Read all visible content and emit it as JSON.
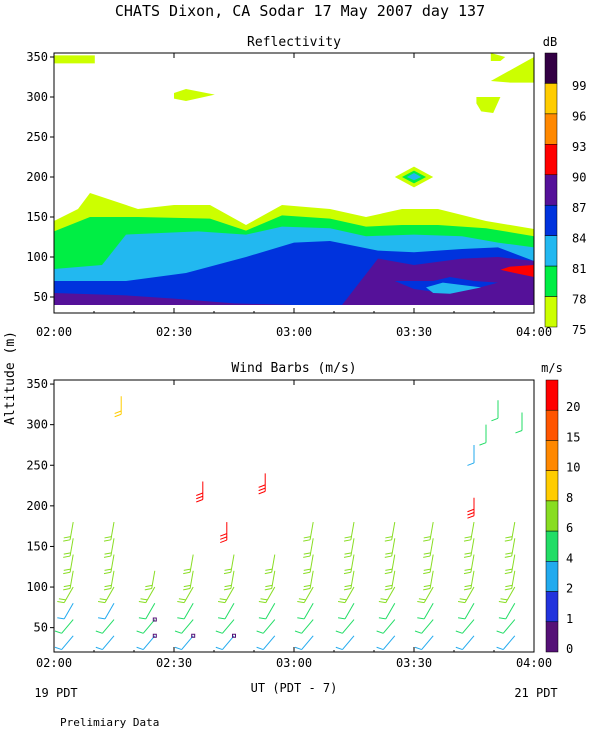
{
  "header": {
    "title": "CHATS Dixon, CA  Sodar  17 May 2007  day 137"
  },
  "footer": {
    "start_label": "19 PDT",
    "end_label": "21 PDT",
    "note": "Prelimiary Data"
  },
  "chart_data": [
    {
      "type": "heatmap",
      "title": "Reflectivity",
      "ylabel": "Altitude (m)",
      "xlabel": "UT (PDT - 7)",
      "x_ticks": [
        "02:00",
        "02:30",
        "03:00",
        "03:30",
        "04:00"
      ],
      "x_tick_hours": [
        2.0,
        2.5,
        3.0,
        3.5,
        4.0
      ],
      "y_ticks": [
        50,
        100,
        150,
        200,
        250,
        300,
        350
      ],
      "ylim": [
        30,
        355
      ],
      "xlim_hours": [
        2.0,
        4.0
      ],
      "colorbar_unit": "dB",
      "colorbar_levels": [
        75,
        78,
        81,
        84,
        87,
        90,
        93,
        96,
        99
      ],
      "colors": {
        "75": "#ccff00",
        "78": "#00ee44",
        "81": "#22b8f0",
        "84": "#0033dd",
        "87": "#551199",
        "90": "#ff0000",
        "93": "#ff8800",
        "96": "#ffcc00",
        "99": "#330044"
      },
      "layers": [
        {
          "level": 75,
          "top_profile": [
            [
              2.0,
              145
            ],
            [
              2.1,
              160
            ],
            [
              2.15,
              180
            ],
            [
              2.35,
              160
            ],
            [
              2.5,
              165
            ],
            [
              2.65,
              165
            ],
            [
              2.8,
              140
            ],
            [
              2.95,
              165
            ],
            [
              3.15,
              160
            ],
            [
              3.3,
              150
            ],
            [
              3.45,
              160
            ],
            [
              3.6,
              160
            ],
            [
              3.8,
              145
            ],
            [
              4.0,
              135
            ]
          ]
        },
        {
          "level": 78,
          "top_profile": [
            [
              2.0,
              132
            ],
            [
              2.15,
              150
            ],
            [
              2.35,
              150
            ],
            [
              2.65,
              148
            ],
            [
              2.8,
              133
            ],
            [
              2.95,
              152
            ],
            [
              3.15,
              148
            ],
            [
              3.3,
              138
            ],
            [
              3.45,
              140
            ],
            [
              3.6,
              140
            ],
            [
              3.8,
              136
            ],
            [
              4.0,
              126
            ]
          ]
        },
        {
          "level": 81,
          "top_profile": [
            [
              2.0,
              85
            ],
            [
              2.2,
              90
            ],
            [
              2.3,
              128
            ],
            [
              2.6,
              132
            ],
            [
              2.8,
              128
            ],
            [
              2.95,
              138
            ],
            [
              3.15,
              136
            ],
            [
              3.3,
              126
            ],
            [
              3.5,
              128
            ],
            [
              3.7,
              126
            ],
            [
              3.85,
              118
            ],
            [
              4.0,
              112
            ]
          ]
        },
        {
          "level": 84,
          "top_profile": [
            [
              2.0,
              70
            ],
            [
              2.3,
              70
            ],
            [
              2.55,
              80
            ],
            [
              2.8,
              100
            ],
            [
              3.0,
              118
            ],
            [
              3.15,
              120
            ],
            [
              3.35,
              108
            ],
            [
              3.5,
              106
            ],
            [
              3.7,
              110
            ],
            [
              3.85,
              112
            ],
            [
              4.0,
              95
            ]
          ]
        },
        {
          "level": 87,
          "top_profile": [
            [
              2.0,
              55
            ],
            [
              2.3,
              52
            ],
            [
              2.5,
              48
            ],
            [
              2.75,
              42
            ],
            [
              3.0,
              40
            ],
            [
              3.2,
              40
            ],
            [
              3.35,
              98
            ],
            [
              3.5,
              90
            ],
            [
              3.7,
              98
            ],
            [
              3.85,
              100
            ],
            [
              4.0,
              95
            ]
          ]
        }
      ],
      "patches": [
        {
          "level": 75,
          "where": "top-left near 350 m at 02:00-02:10"
        },
        {
          "level": 75,
          "where": "near 300 m at 02:35"
        },
        {
          "level": 75,
          "where": "near 350 m at 03:45"
        },
        {
          "level": 75,
          "where": "290-300 m at 03:40-03:45"
        },
        {
          "level": 75,
          "where": "320-350 m at 03:50-04:00"
        },
        {
          "level": 75,
          "where": "200 m at 03:30"
        },
        {
          "level": 78,
          "where": "200 m at 03:30"
        },
        {
          "level": 81,
          "where": "55-65 m at 03:40"
        },
        {
          "level": 90,
          "where": "75-90 m at 03:55-04:00"
        }
      ]
    },
    {
      "type": "scatter",
      "title": "Wind Barbs (m/s)",
      "ylabel": "Altitude (m)",
      "xlabel": "UT (PDT - 7)",
      "x_ticks": [
        "02:00",
        "02:30",
        "03:00",
        "03:30",
        "04:00"
      ],
      "x_tick_hours": [
        2.0,
        2.5,
        3.0,
        3.5,
        4.0
      ],
      "y_ticks": [
        50,
        100,
        150,
        200,
        250,
        300,
        350
      ],
      "ylim": [
        20,
        355
      ],
      "xlim_hours": [
        2.0,
        4.0
      ],
      "colorbar_unit": "m/s",
      "colorbar_labels": [
        "0",
        "1",
        "2",
        "4",
        "6",
        "8",
        "10",
        "15",
        "20"
      ],
      "colorbar_colors": [
        "#551177",
        "#2233dd",
        "#22aaee",
        "#22dd66",
        "#88dd22",
        "#ffcc00",
        "#ff8800",
        "#ff5500",
        "#ff0000"
      ],
      "barb_columns_hours": [
        2.08,
        2.17,
        2.25,
        2.33,
        2.42,
        2.5,
        2.58,
        2.67,
        2.75,
        2.83,
        2.92,
        3.0,
        3.08,
        3.17,
        3.25,
        3.33,
        3.42,
        3.5,
        3.58,
        3.67,
        3.75,
        3.83,
        3.92
      ],
      "barb_altitudes": [
        40,
        60,
        80,
        100,
        120,
        140,
        160,
        180
      ],
      "upper_barbs": [
        {
          "t": 2.28,
          "z": 335,
          "speed": 8
        },
        {
          "t": 2.62,
          "z": 230,
          "speed": 20
        },
        {
          "t": 2.72,
          "z": 180,
          "speed": 20
        },
        {
          "t": 2.88,
          "z": 240,
          "speed": 20
        },
        {
          "t": 3.75,
          "z": 210,
          "speed": 20
        },
        {
          "t": 3.75,
          "z": 275,
          "speed": 2
        },
        {
          "t": 3.85,
          "z": 330,
          "speed": 4
        },
        {
          "t": 3.95,
          "z": 315,
          "speed": 4
        },
        {
          "t": 3.8,
          "z": 300,
          "speed": 4
        }
      ]
    }
  ]
}
